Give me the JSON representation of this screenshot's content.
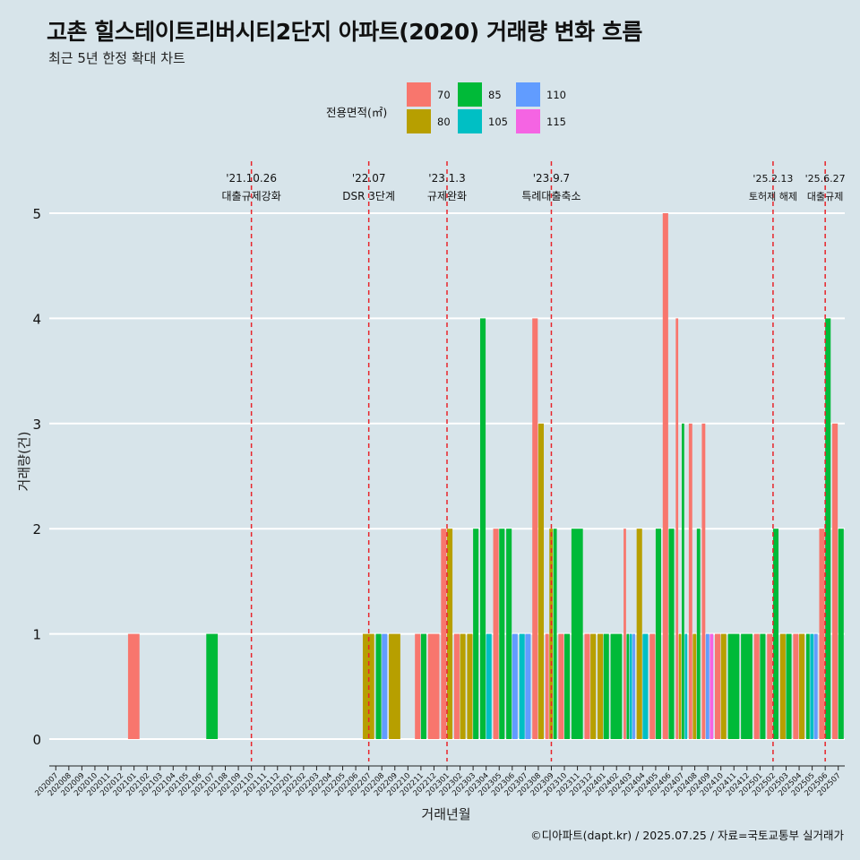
{
  "title": "고촌 힐스테이트리버시티2단지 아파트(2020) 거래량 변화 흐름",
  "subtitle": "최근 5년 한정 확대 차트",
  "caption": "©디아파트(dapt.kr) / 2025.07.25 / 자료=국토교통부 실거래가",
  "legend": {
    "title": "전용면적(㎡)",
    "entries": [
      {
        "label": "70",
        "color": "#f8766d"
      },
      {
        "label": "80",
        "color": "#b79f00"
      },
      {
        "label": "85",
        "color": "#00ba38"
      },
      {
        "label": "105",
        "color": "#00bfc4"
      },
      {
        "label": "110",
        "color": "#619cff"
      },
      {
        "label": "115",
        "color": "#f564e3"
      }
    ]
  },
  "chart_data": {
    "type": "bar",
    "xlabel": "거래년월",
    "ylabel": "거래량(건)",
    "ylim": [
      -0.25,
      5.3
    ],
    "yticks": [
      0,
      1,
      2,
      3,
      4,
      5
    ],
    "categories": [
      "202007",
      "202008",
      "202009",
      "202010",
      "202011",
      "202012",
      "202101",
      "202102",
      "202103",
      "202104",
      "202105",
      "202106",
      "202107",
      "202108",
      "202109",
      "202110",
      "202111",
      "202112",
      "202201",
      "202202",
      "202203",
      "202204",
      "202205",
      "202206",
      "202207",
      "202208",
      "202209",
      "202210",
      "202211",
      "202212",
      "202301",
      "202302",
      "202303",
      "202304",
      "202305",
      "202306",
      "202307",
      "202308",
      "202309",
      "202310",
      "202311",
      "202312",
      "202401",
      "202402",
      "202403",
      "202404",
      "202405",
      "202406",
      "202407",
      "202408",
      "202409",
      "202410",
      "202411",
      "202412",
      "202501",
      "202502",
      "202503",
      "202504",
      "202505",
      "202506",
      "202507"
    ],
    "series": [
      {
        "name": "70",
        "color": "#f8766d",
        "values": [
          0,
          0,
          0,
          0,
          0,
          0,
          1,
          0,
          0,
          0,
          0,
          0,
          0,
          0,
          0,
          0,
          0,
          0,
          0,
          0,
          0,
          0,
          0,
          0,
          0,
          0,
          0,
          0,
          1,
          1,
          2,
          1,
          0,
          0,
          2,
          0,
          0,
          4,
          1,
          1,
          0,
          1,
          0,
          0,
          2,
          0,
          1,
          5,
          4,
          3,
          3,
          1,
          0,
          0,
          1,
          1,
          0,
          1,
          0,
          2,
          3
        ]
      },
      {
        "name": "80",
        "color": "#b79f00",
        "values": [
          0,
          0,
          0,
          0,
          0,
          0,
          0,
          0,
          0,
          0,
          0,
          0,
          0,
          0,
          0,
          0,
          0,
          0,
          0,
          0,
          0,
          0,
          0,
          0,
          1,
          0,
          1,
          0,
          0,
          0,
          2,
          1,
          1,
          0,
          0,
          0,
          0,
          3,
          2,
          0,
          0,
          1,
          1,
          0,
          0,
          2,
          0,
          0,
          1,
          1,
          0,
          1,
          0,
          0,
          0,
          0,
          1,
          1,
          0,
          0,
          0
        ]
      },
      {
        "name": "85",
        "color": "#00ba38",
        "values": [
          0,
          0,
          0,
          0,
          0,
          0,
          0,
          0,
          0,
          0,
          0,
          0,
          1,
          0,
          0,
          0,
          0,
          0,
          0,
          0,
          0,
          0,
          0,
          0,
          0,
          1,
          0,
          0,
          1,
          0,
          0,
          0,
          2,
          4,
          2,
          2,
          0,
          0,
          2,
          1,
          2,
          0,
          1,
          1,
          1,
          0,
          2,
          2,
          3,
          2,
          0,
          0,
          1,
          1,
          1,
          2,
          1,
          0,
          1,
          4,
          2
        ]
      },
      {
        "name": "105",
        "color": "#00bfc4",
        "values": [
          0,
          0,
          0,
          0,
          0,
          0,
          0,
          0,
          0,
          0,
          0,
          0,
          0,
          0,
          0,
          0,
          0,
          0,
          0,
          0,
          0,
          0,
          0,
          0,
          0,
          0,
          0,
          0,
          0,
          0,
          0,
          0,
          0,
          1,
          0,
          0,
          1,
          0,
          0,
          0,
          0,
          0,
          0,
          0,
          1,
          1,
          0,
          0,
          1,
          0,
          0,
          0,
          0,
          0,
          0,
          0,
          0,
          0,
          1,
          0,
          0
        ]
      },
      {
        "name": "110",
        "color": "#619cff",
        "values": [
          0,
          0,
          0,
          0,
          0,
          0,
          0,
          0,
          0,
          0,
          0,
          0,
          0,
          0,
          0,
          0,
          0,
          0,
          0,
          0,
          0,
          0,
          0,
          0,
          0,
          1,
          0,
          0,
          0,
          0,
          0,
          0,
          0,
          0,
          0,
          1,
          1,
          0,
          0,
          0,
          0,
          0,
          0,
          0,
          1,
          0,
          0,
          0,
          0,
          0,
          1,
          0,
          0,
          0,
          0,
          0,
          0,
          0,
          1,
          0,
          0
        ]
      },
      {
        "name": "115",
        "color": "#f564e3",
        "values": [
          0,
          0,
          0,
          0,
          0,
          0,
          0,
          0,
          0,
          0,
          0,
          0,
          0,
          0,
          0,
          0,
          0,
          0,
          0,
          0,
          0,
          0,
          0,
          0,
          0,
          0,
          0,
          0,
          0,
          0,
          0,
          0,
          0,
          0,
          0,
          0,
          0,
          0,
          0,
          0,
          0,
          0,
          0,
          0,
          0,
          0,
          0,
          0,
          0,
          0,
          1,
          0,
          0,
          0,
          0,
          0,
          0,
          0,
          0,
          0,
          0
        ]
      }
    ],
    "events": [
      {
        "x": "202110",
        "date": "'21.10.26",
        "text": "대출규제강화"
      },
      {
        "x": "202207",
        "date": "'22.07",
        "text": "DSR 3단계"
      },
      {
        "x": "202301",
        "date": "'23.1.3",
        "text": "규제완화"
      },
      {
        "x": "202309",
        "date": "'23.9.7",
        "text": "특례대출축소"
      },
      {
        "x": "202502",
        "date": "'25.2.13",
        "text": "토허제 해제"
      },
      {
        "x": "202506",
        "date": "'25.6.27",
        "text": "대출규제"
      }
    ]
  }
}
